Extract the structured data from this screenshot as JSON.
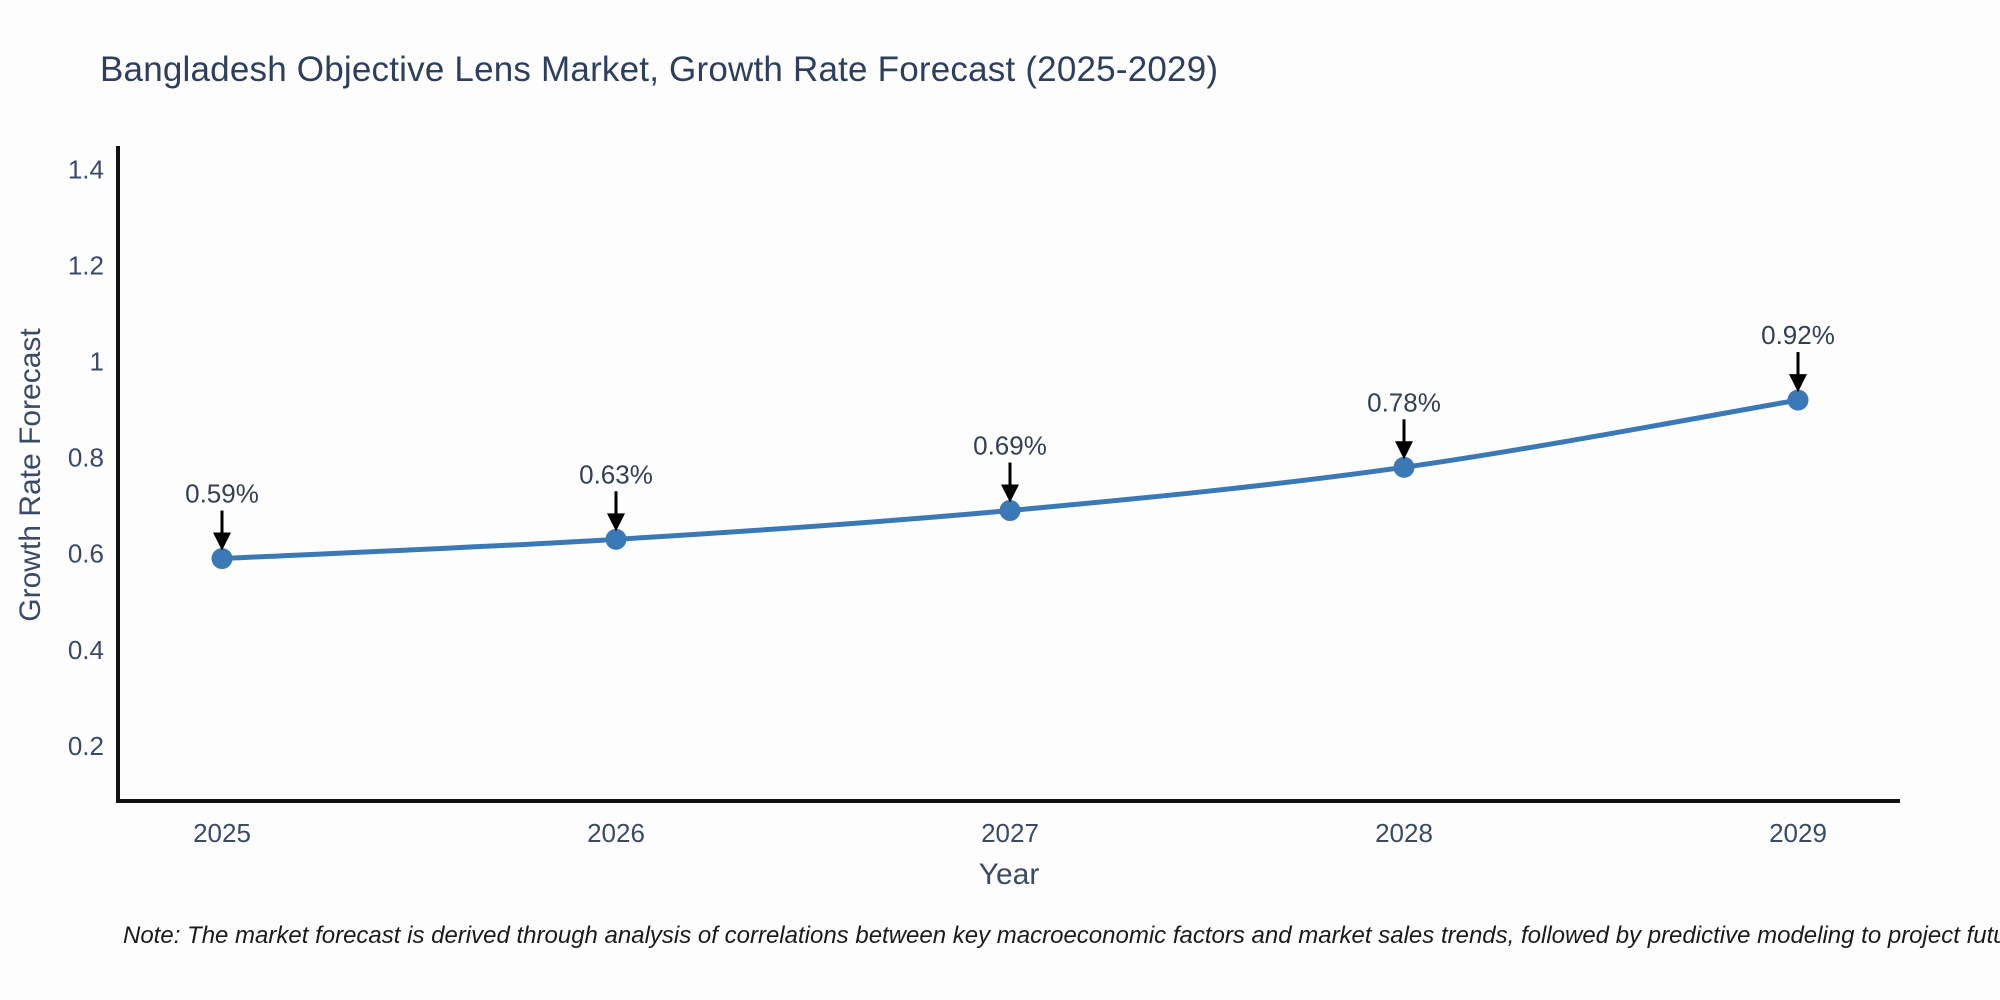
{
  "title": "Bangladesh Objective Lens Market, Growth Rate Forecast (2025-2029)",
  "footnote": "Note: The market forecast is derived through analysis of correlations between key macroeconomic factors and market sales trends, followed by predictive modeling to project future sales",
  "colors": {
    "line": "#3a79b5",
    "marker": "#3a79b5",
    "axis": "#111111",
    "tick_text": "#3a4a66",
    "title_text": "#2d3e5e",
    "annotation_text": "#333f52",
    "arrow": "#000000",
    "background": "#fdfdfd"
  },
  "chart_data": {
    "type": "line",
    "title": "Bangladesh Objective Lens Market, Growth Rate Forecast (2025-2029)",
    "xlabel": "Year",
    "ylabel": "Growth Rate Forecast",
    "categories": [
      "2025",
      "2026",
      "2027",
      "2028",
      "2029"
    ],
    "values": [
      0.59,
      0.63,
      0.69,
      0.78,
      0.92
    ],
    "data_labels": [
      "0.59%",
      "0.63%",
      "0.69%",
      "0.78%",
      "0.92%"
    ],
    "series_name": "Growth Rate Forecast",
    "y_ticks": [
      0.2,
      0.4,
      0.6,
      0.8,
      1,
      1.2,
      1.4
    ],
    "y_tick_labels": [
      "0.2",
      "0.4",
      "0.6",
      "0.8",
      "1",
      "1.2",
      "1.4"
    ],
    "ylim": [
      0.085,
      1.445
    ],
    "grid": false,
    "legend": false,
    "markers": true,
    "annotation_style": "black down-arrow from label to marker"
  }
}
